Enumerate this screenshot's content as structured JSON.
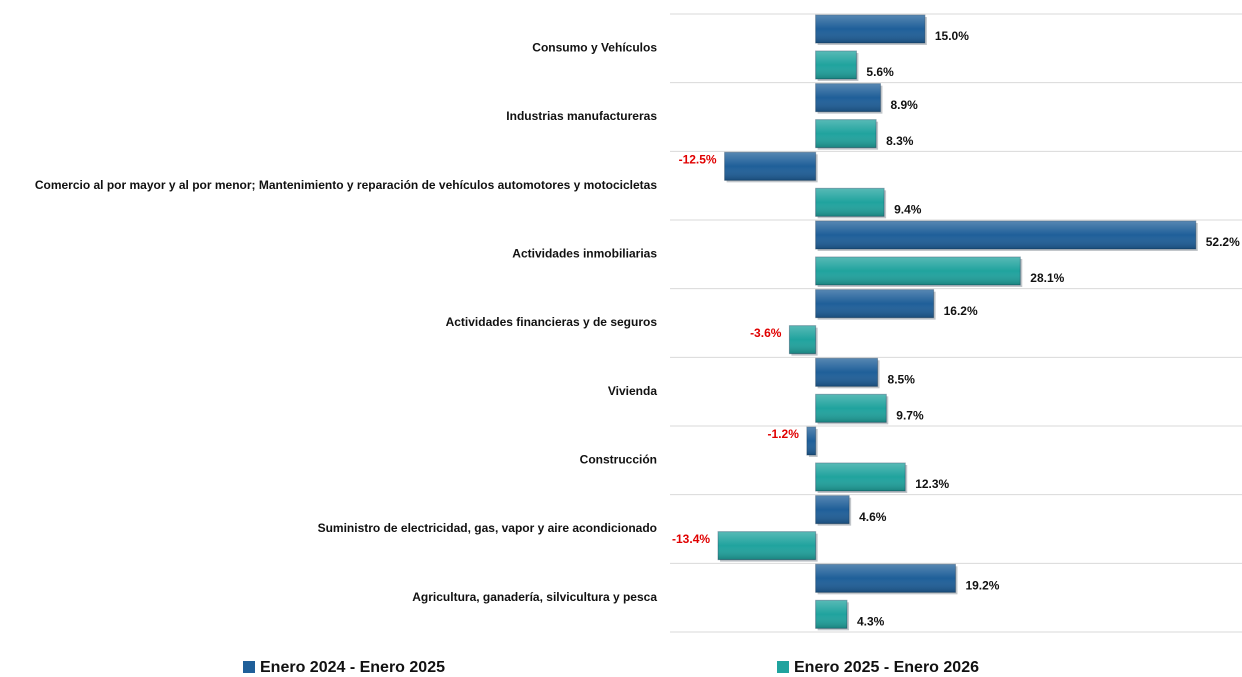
{
  "chart_data": {
    "type": "hbar",
    "categories": [
      "Consumo y Vehículos",
      "Industrias manufactureras",
      "Comercio al por mayor y al por menor; Mantenimiento y reparación de vehículos automotores y motocicletas",
      "Actividades inmobiliarias",
      "Actividades financieras y de seguros",
      "Vivienda",
      "Construcción",
      "Suministro de electricidad, gas, vapor y aire acondicionado",
      "Agricultura, ganadería, silvicultura y pesca"
    ],
    "series": [
      {
        "name": "Enero 2024 - Enero 2025",
        "color": "#1f5f99",
        "values": [
          15.0,
          8.9,
          -12.5,
          52.2,
          16.2,
          8.5,
          -1.2,
          4.6,
          19.2
        ],
        "value_labels": [
          "15.0%",
          "8.9%",
          "-12.5%",
          "52.2%",
          "16.2%",
          "8.5%",
          "-1.2%",
          "4.6%",
          "19.2%"
        ]
      },
      {
        "name": "Enero 2025 - Enero 2026",
        "color": "#20a39e",
        "values": [
          5.6,
          8.3,
          9.4,
          28.1,
          -3.6,
          9.7,
          12.3,
          -13.4,
          4.3
        ],
        "value_labels": [
          "5.6%",
          "8.3%",
          "9.4%",
          "28.1%",
          "-3.6%",
          "9.7%",
          "12.3%",
          "-13.4%",
          "4.3%"
        ]
      }
    ],
    "xlim": [
      -20,
      58
    ],
    "negative_label_color": "#e00000"
  }
}
